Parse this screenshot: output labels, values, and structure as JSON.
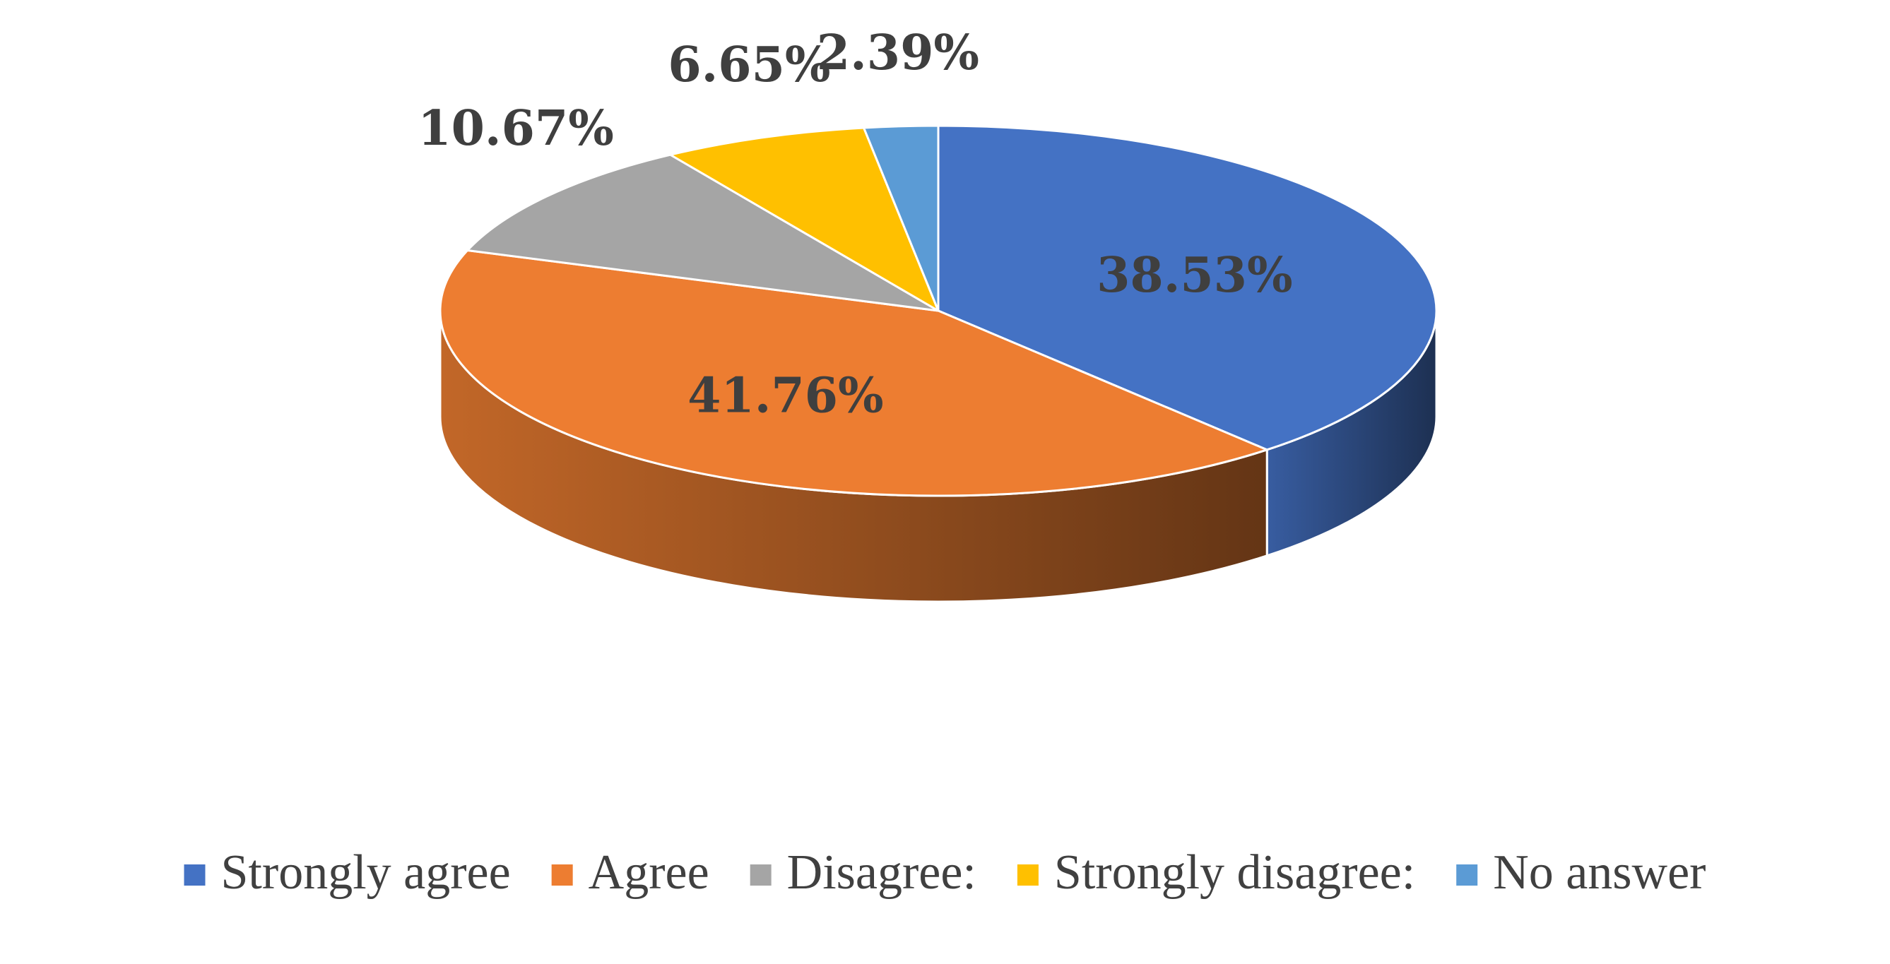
{
  "chart_data": {
    "type": "pie",
    "style": "3d",
    "title": "",
    "legend_position": "bottom",
    "slices": [
      {
        "label": "Strongly agree",
        "value": 38.53,
        "display": "38.53%",
        "color": "#4472C4",
        "label_placement": "inside"
      },
      {
        "label": "Agree",
        "value": 41.76,
        "display": "41.76%",
        "color": "#ED7D31",
        "label_placement": "inside"
      },
      {
        "label": "Disagree:",
        "value": 10.67,
        "display": "10.67%",
        "color": "#A5A5A5",
        "label_placement": "outside"
      },
      {
        "label": "Strongly disagree:",
        "value": 6.65,
        "display": "6.65%",
        "color": "#FFC000",
        "label_placement": "outside"
      },
      {
        "label": "No answer",
        "value": 2.39,
        "display": "2.39%",
        "color": "#5B9BD5",
        "label_placement": "outside"
      }
    ]
  }
}
